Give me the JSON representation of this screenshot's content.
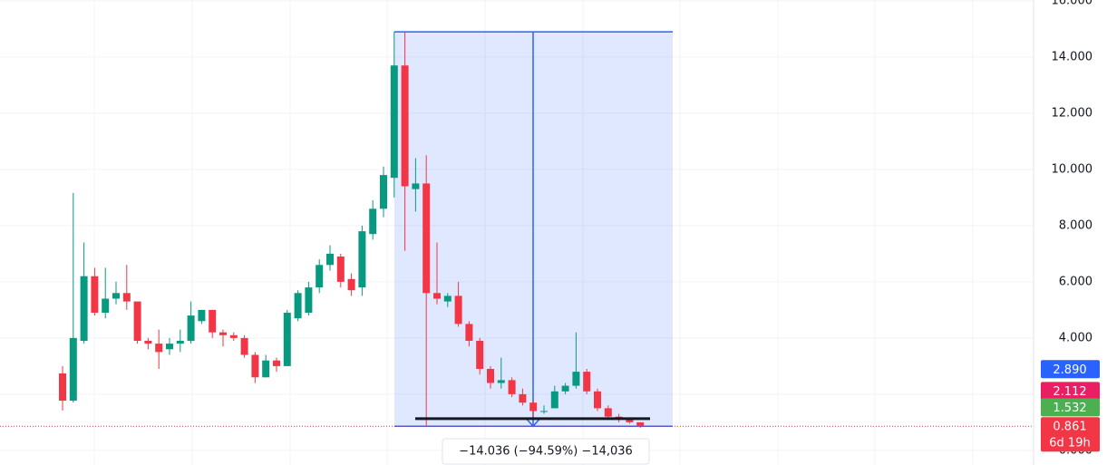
{
  "chart_data": {
    "type": "candlestick",
    "ylim": [
      -0.52,
      16.03
    ],
    "yticks": [
      {
        "value": 0,
        "label": "0.000"
      },
      {
        "value": 2,
        "label": "2.000"
      },
      {
        "value": 4,
        "label": "4.000"
      },
      {
        "value": 6,
        "label": "6.000"
      },
      {
        "value": 8,
        "label": "8.000"
      },
      {
        "value": 10,
        "label": "10.000"
      },
      {
        "value": 12,
        "label": "12.000"
      },
      {
        "value": 14,
        "label": "14.000"
      },
      {
        "value": 16,
        "label": "16.000"
      }
    ],
    "grid": true,
    "up_color": "#089981",
    "down_color": "#f23645",
    "open": [
      2.74,
      1.77,
      3.9,
      6.2,
      4.9,
      5.4,
      5.6,
      5.3,
      3.9,
      3.8,
      3.6,
      3.8,
      3.9,
      4.6,
      5.0,
      4.2,
      4.1,
      4.0,
      3.4,
      2.6,
      3.2,
      3.0,
      4.7,
      4.9,
      5.8,
      6.6,
      6.9,
      6.1,
      5.8,
      7.7,
      8.6,
      9.7,
      13.7,
      9.3,
      9.5,
      5.6,
      5.3,
      5.5,
      4.5,
      3.9,
      2.9,
      2.4,
      2.5,
      2.0,
      1.7,
      1.4,
      1.5,
      2.1,
      2.3,
      2.8,
      2.1,
      1.5,
      1.2,
      1.1,
      1.0
    ],
    "high": [
      3.0,
      9.16,
      7.4,
      6.5,
      6.5,
      6.0,
      6.6,
      5.3,
      4.0,
      4.3,
      4.0,
      4.3,
      5.3,
      5.0,
      5.0,
      4.3,
      4.2,
      4.1,
      3.5,
      3.4,
      3.3,
      5.0,
      5.7,
      6.0,
      6.8,
      7.3,
      7.0,
      6.3,
      8.0,
      8.9,
      10.1,
      14.9,
      14.9,
      10.4,
      10.5,
      7.4,
      5.6,
      6.0,
      4.6,
      4.0,
      3.0,
      3.3,
      2.6,
      2.2,
      1.8,
      1.6,
      2.3,
      2.4,
      4.2,
      2.9,
      2.2,
      1.6,
      1.3,
      1.1,
      1.0
    ],
    "low": [
      1.42,
      1.7,
      3.8,
      4.8,
      4.7,
      5.2,
      5.0,
      3.8,
      3.6,
      2.9,
      3.4,
      3.5,
      3.8,
      4.5,
      4.0,
      3.7,
      3.9,
      3.3,
      2.4,
      2.6,
      2.8,
      3.0,
      4.6,
      4.8,
      5.6,
      6.4,
      5.8,
      5.5,
      5.5,
      7.5,
      8.3,
      9.0,
      7.1,
      8.5,
      0.85,
      5.2,
      5.1,
      4.4,
      3.7,
      2.7,
      2.2,
      2.2,
      1.9,
      1.6,
      1.2,
      1.3,
      1.5,
      2.0,
      2.2,
      2.0,
      1.4,
      1.1,
      1.0,
      0.95,
      0.8
    ],
    "close": [
      1.77,
      4.0,
      6.2,
      4.9,
      5.4,
      5.6,
      5.3,
      3.9,
      3.8,
      3.5,
      3.8,
      3.9,
      4.8,
      5.0,
      4.2,
      4.1,
      4.0,
      3.4,
      2.6,
      3.2,
      3.0,
      4.9,
      5.6,
      5.8,
      6.6,
      7.0,
      6.0,
      5.7,
      7.8,
      8.6,
      9.8,
      13.7,
      9.4,
      9.5,
      5.6,
      5.4,
      5.5,
      4.5,
      3.9,
      2.9,
      2.4,
      2.5,
      2.0,
      1.7,
      1.4,
      1.4,
      2.1,
      2.3,
      2.8,
      2.1,
      1.5,
      1.2,
      1.1,
      1.0,
      0.861
    ],
    "price_tags": [
      {
        "value": 2.89,
        "label": "2.890",
        "color": "#2962ff"
      },
      {
        "value": 2.112,
        "label": "2.112",
        "color": "#e91e63"
      },
      {
        "value": 1.532,
        "label": "1.532",
        "color": "#4caf50"
      },
      {
        "value": 0.861,
        "label": "0.861",
        "color": "#f23645"
      }
    ],
    "countdown": "6d 19h",
    "measure": {
      "from": 14.897,
      "to": 0.861,
      "label": "−14.036 (−94.59%) −14,036",
      "color": "#2962ff"
    },
    "hline": 1.13
  }
}
